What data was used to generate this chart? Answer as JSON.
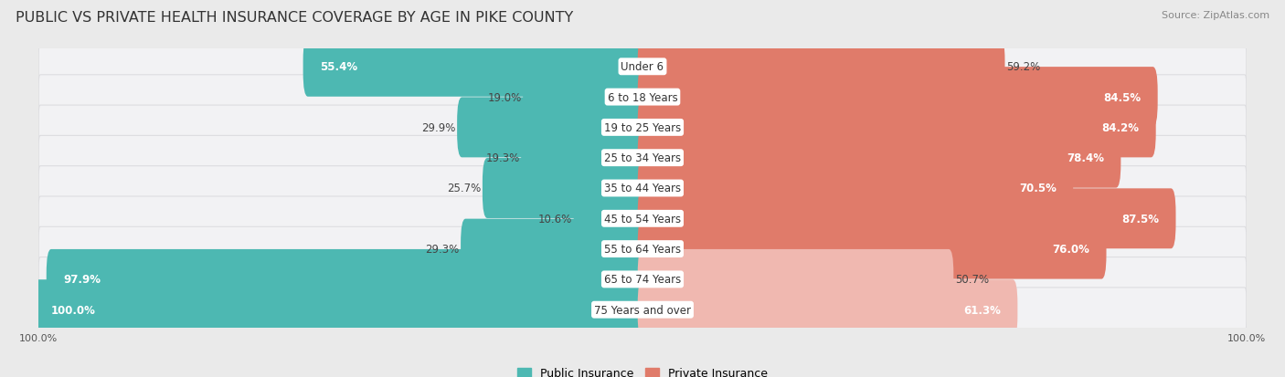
{
  "title": "PUBLIC VS PRIVATE HEALTH INSURANCE COVERAGE BY AGE IN PIKE COUNTY",
  "source": "Source: ZipAtlas.com",
  "categories": [
    "Under 6",
    "6 to 18 Years",
    "19 to 25 Years",
    "25 to 34 Years",
    "35 to 44 Years",
    "45 to 54 Years",
    "55 to 64 Years",
    "65 to 74 Years",
    "75 Years and over"
  ],
  "public_values": [
    55.4,
    19.0,
    29.9,
    19.3,
    25.7,
    10.6,
    29.3,
    97.9,
    100.0
  ],
  "private_values": [
    59.2,
    84.5,
    84.2,
    78.4,
    70.5,
    87.5,
    76.0,
    50.7,
    61.3
  ],
  "public_color": "#4db8b2",
  "private_color": "#e07b6a",
  "private_color_light": "#f0b8b0",
  "background_color": "#eaeaea",
  "row_bg": "#f2f2f4",
  "row_border": "#dddde0",
  "max_value": 100.0,
  "legend_public": "Public Insurance",
  "legend_private": "Private Insurance",
  "title_fontsize": 11.5,
  "value_fontsize": 8.5,
  "category_fontsize": 8.5,
  "tick_fontsize": 8,
  "source_fontsize": 8
}
